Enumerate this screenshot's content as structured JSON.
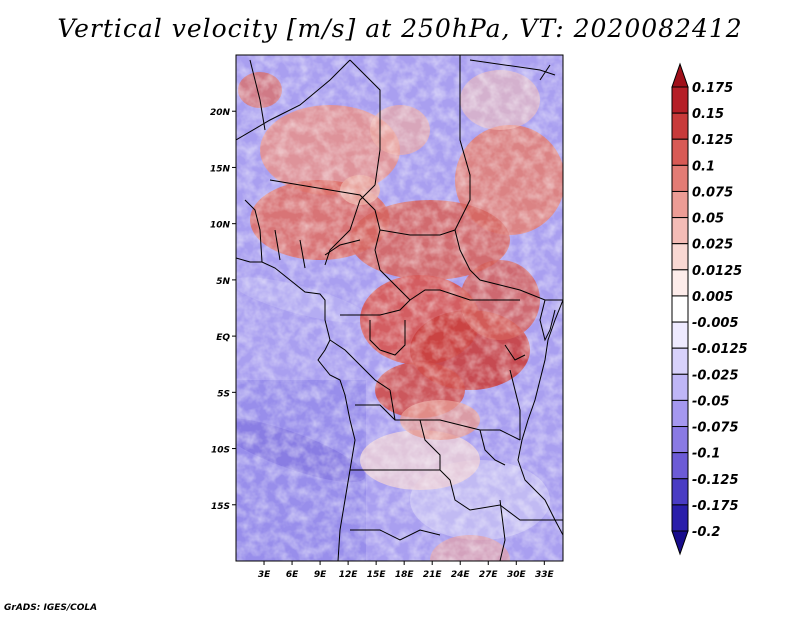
{
  "title": "Vertical velocity [m/s] at 250hPa, VT: 2020082412",
  "credit": "GrADS: IGES/COLA",
  "map": {
    "lon_range": [
      0,
      35
    ],
    "lat_range": [
      -20,
      25
    ],
    "lat_labels": [
      "20N",
      "15N",
      "10N",
      "5N",
      "EQ",
      "5S",
      "10S",
      "15S"
    ],
    "lat_values": [
      20,
      15,
      10,
      5,
      0,
      -5,
      -10,
      -15
    ],
    "lon_labels": [
      "3E",
      "6E",
      "9E",
      "12E",
      "15E",
      "18E",
      "21E",
      "24E",
      "27E",
      "30E",
      "33E"
    ],
    "lon_values": [
      3,
      6,
      9,
      12,
      15,
      18,
      21,
      24,
      27,
      30,
      33
    ]
  },
  "colorbar": {
    "labels": [
      "0.175",
      "0.15",
      "0.125",
      "0.1",
      "0.075",
      "0.05",
      "0.025",
      "0.0125",
      "0.005",
      "-0.005",
      "-0.0125",
      "-0.025",
      "-0.05",
      "-0.075",
      "-0.1",
      "-0.125",
      "-0.175",
      "-0.2"
    ],
    "colors": [
      "#a0101a",
      "#b51f27",
      "#c83a3a",
      "#d85a55",
      "#e37c75",
      "#ec9c95",
      "#f4bcb6",
      "#f9d8d3",
      "#fdecea",
      "#ffffff",
      "#eeeaff",
      "#d8d2fb",
      "#bfb6f6",
      "#a598ef",
      "#8a7ae4",
      "#6c5bd6",
      "#4a3cc4",
      "#2a1eaa",
      "#180c8c"
    ]
  },
  "colors": {
    "warm": "#c83a3a",
    "cool": "#6c5bd6",
    "land_border": "#000000"
  }
}
